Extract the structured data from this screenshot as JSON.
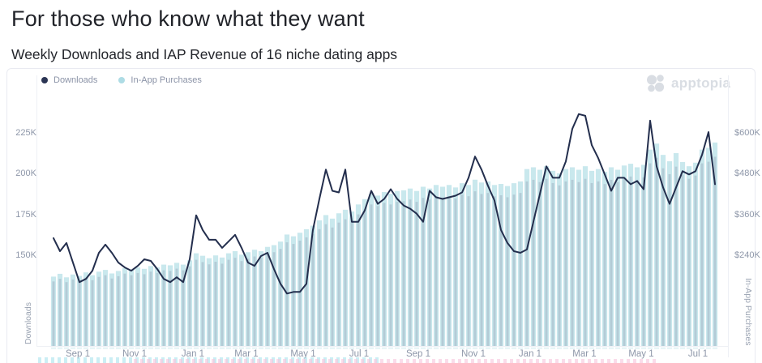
{
  "header": {
    "title": "For those who know what they want",
    "subtitle": "Weekly Downloads and IAP Revenue of 16 niche dating apps"
  },
  "branding": {
    "logo_text": "apptopia"
  },
  "legend": [
    {
      "label": "Downloads",
      "color": "#2b3554"
    },
    {
      "label": "In-App Purchases",
      "color": "#aedce5"
    }
  ],
  "left_axis": {
    "title": "Downloads",
    "ticks": [
      "225K",
      "200K",
      "175K",
      "150K"
    ]
  },
  "right_axis": {
    "title": "In-App Purchases",
    "ticks": [
      "$600K",
      "$480K",
      "$360K",
      "$240K"
    ]
  },
  "x_axis": {
    "labels": [
      "Sep 1",
      "Nov 1",
      "Jan 1",
      "Mar 1",
      "May 1",
      "Jul 1",
      "Sep 1",
      "Nov 1",
      "Jan 1",
      "Mar 1",
      "May 1",
      "Jul 1"
    ]
  },
  "chart_data": [
    {
      "type": "line",
      "name": "Downloads",
      "y_axis": "left",
      "unit": "downloads per week (thousands)",
      "color": "#232e4d",
      "x_unit": "week",
      "weeks": 103,
      "y_tick_values_K": [
        150,
        175,
        200,
        225
      ],
      "values_K": [
        161,
        153,
        158,
        146,
        134,
        136,
        141,
        152,
        157,
        152,
        146,
        143,
        141,
        144,
        148,
        147,
        142,
        136,
        134,
        137,
        134,
        148,
        175,
        166,
        160,
        160,
        155,
        159,
        163,
        155,
        146,
        144,
        150,
        152,
        142,
        133,
        127,
        128,
        128,
        133,
        166,
        185,
        203,
        190,
        189,
        203,
        171,
        171,
        178,
        190,
        182,
        185,
        191,
        185,
        181,
        179,
        176,
        171,
        190,
        186,
        185,
        186,
        187,
        189,
        198,
        211,
        203,
        193,
        184,
        166,
        158,
        153,
        152,
        154,
        171,
        188,
        205,
        198,
        198,
        208,
        228,
        237,
        236,
        218,
        210,
        200,
        190,
        198,
        198,
        194,
        196,
        191,
        233,
        205,
        192,
        182,
        192,
        202,
        200,
        202,
        212,
        226,
        194
      ]
    },
    {
      "type": "bar",
      "name": "In-App Purchases",
      "y_axis": "right",
      "unit": "USD per week (thousands)",
      "color": "#c6e7ec",
      "inner_color": "#93a1b5",
      "x_unit": "week",
      "weeks": 103,
      "y_tick_values_usdK": [
        240,
        360,
        480,
        600
      ],
      "values_usdK": [
        196,
        204,
        194,
        202,
        198,
        208,
        200,
        210,
        215,
        205,
        212,
        220,
        215,
        222,
        218,
        226,
        222,
        230,
        228,
        235,
        230,
        242,
        262,
        255,
        248,
        256,
        250,
        262,
        268,
        258,
        265,
        272,
        268,
        280,
        285,
        295,
        315,
        310,
        320,
        330,
        340,
        355,
        370,
        360,
        375,
        385,
        380,
        400,
        415,
        430,
        425,
        435,
        430,
        438,
        440,
        445,
        438,
        450,
        445,
        455,
        450,
        455,
        448,
        460,
        455,
        470,
        462,
        465,
        455,
        458,
        452,
        460,
        465,
        500,
        505,
        498,
        508,
        495,
        488,
        500,
        505,
        498,
        508,
        495,
        500,
        492,
        505,
        498,
        510,
        515,
        505,
        512,
        555,
        572,
        540,
        522,
        545,
        520,
        508,
        518,
        555,
        560,
        575
      ]
    }
  ]
}
